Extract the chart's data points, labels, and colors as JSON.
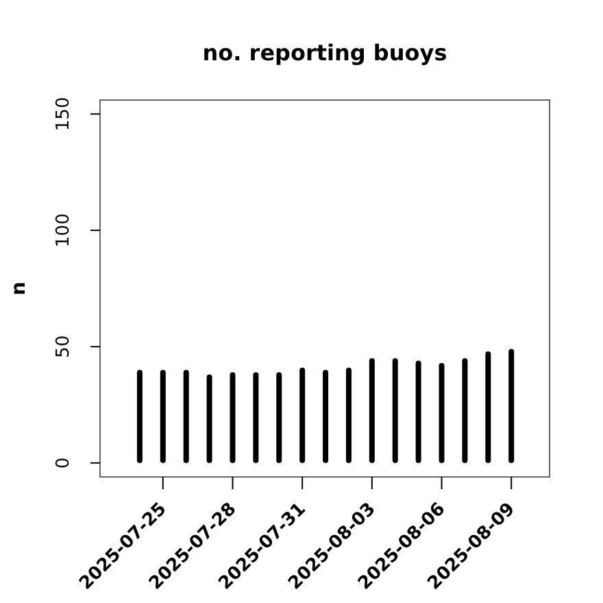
{
  "chart_data": {
    "type": "bar",
    "title": "no. reporting buoys",
    "ylabel": "n",
    "x": [
      "2025-07-24",
      "2025-07-25",
      "2025-07-26",
      "2025-07-27",
      "2025-07-28",
      "2025-07-29",
      "2025-07-30",
      "2025-07-31",
      "2025-08-01",
      "2025-08-02",
      "2025-08-03",
      "2025-08-04",
      "2025-08-05",
      "2025-08-06",
      "2025-08-07",
      "2025-08-08",
      "2025-08-09"
    ],
    "values": [
      40,
      40,
      40,
      38,
      39,
      39,
      39,
      41,
      40,
      41,
      45,
      45,
      44,
      43,
      45,
      48,
      49
    ],
    "color": "#000000",
    "xlim": [
      "2025-07-22T07:00",
      "2025-08-10T15:30"
    ],
    "xticks": [
      "2025-07-25",
      "2025-07-28",
      "2025-07-31",
      "2025-08-03",
      "2025-08-06",
      "2025-08-09"
    ],
    "ylim": [
      -6,
      156
    ],
    "yticks": [
      0,
      50,
      100,
      150
    ]
  }
}
